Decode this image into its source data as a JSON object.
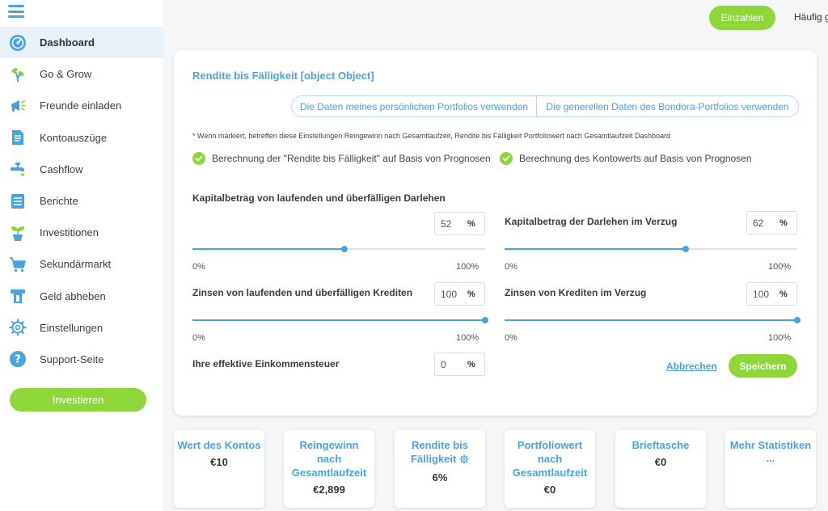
{
  "sidebar": {
    "items": [
      {
        "label": "Dashboard",
        "icon": "speedometer-icon",
        "active": true
      },
      {
        "label": "Go & Grow",
        "icon": "plant-sprout-icon"
      },
      {
        "label": "Freunde einladen",
        "icon": "megaphone-icon"
      },
      {
        "label": "Kontoauszüge",
        "icon": "document-icon"
      },
      {
        "label": "Cashflow",
        "icon": "faucet-icon"
      },
      {
        "label": "Berichte",
        "icon": "report-list-icon"
      },
      {
        "label": "Investitionen",
        "icon": "potted-plant-icon"
      },
      {
        "label": "Sekundärmarkt",
        "icon": "shopping-cart-icon"
      },
      {
        "label": "Geld abheben",
        "icon": "withdraw-icon"
      },
      {
        "label": "Einstellungen",
        "icon": "gear-icon"
      },
      {
        "label": "Support-Seite",
        "icon": "question-icon"
      }
    ],
    "invest_label": "Investieren"
  },
  "header": {
    "deposit_label": "Einzahlen",
    "faq_label": "Häufig gestellte Fragen"
  },
  "settings": {
    "title": "Rendite bis Fälligkeit [object Object]",
    "toggle_personal": "Die Daten meines persönlichen Portfolios verwenden",
    "toggle_general": "Die generellen Daten des Bondora-Portfolios verwenden",
    "note": "* Wenn markiert, betreffen diese Einstellungen Reingewinn nach Gesamtlaufzeit, Rendite bis Fälligkeit Portfoliowert nach Gesamtlaufzeit Dashboard",
    "check_yield": "Berechnung der \"Rendite bis Fälligkeit\" auf Basis von Prognosen",
    "check_account": "Berechnung des Kontowerts auf Basis von Prognosen",
    "principal_current_label": "Kapitalbetrag von laufenden und überfälligen Darlehen",
    "principal_current_value": "52",
    "principal_default_label": "Kapitalbetrag der Darlehen im Verzug",
    "principal_default_value": "62",
    "interest_current_label": "Zinsen von laufenden und überfälligen Krediten",
    "interest_current_value": "100",
    "interest_default_label": "Zinsen von Krediten im Verzug",
    "interest_default_value": "100",
    "tax_label": "Ihre effektive Einkommensteuer",
    "tax_value": "0",
    "pct_unit": "%",
    "slider_min": "0%",
    "slider_max": "100%",
    "cancel_label": "Abbrechen",
    "save_label": "Speichern"
  },
  "sliders": {
    "principal_current": 52,
    "principal_default": 62,
    "interest_current": 100,
    "interest_default": 100
  },
  "stats": [
    {
      "label": "Wert des Kontos",
      "value": "€10"
    },
    {
      "label": "Reingewinn nach Gesamtlaufzeit",
      "value": "€2,899"
    },
    {
      "label": "Rendite bis Fälligkeit",
      "value": "6%",
      "has_gear": true
    },
    {
      "label": "Portfoliowert nach Gesamtlaufzeit",
      "value": "€0"
    },
    {
      "label": "Brieftasche",
      "value": "€0"
    },
    {
      "label": "Mehr Statistiken",
      "value": "..."
    }
  ],
  "colors": {
    "accent_blue": "#4aa3df",
    "accent_green": "#8fd63a",
    "active_bg": "#e9f1f9"
  }
}
